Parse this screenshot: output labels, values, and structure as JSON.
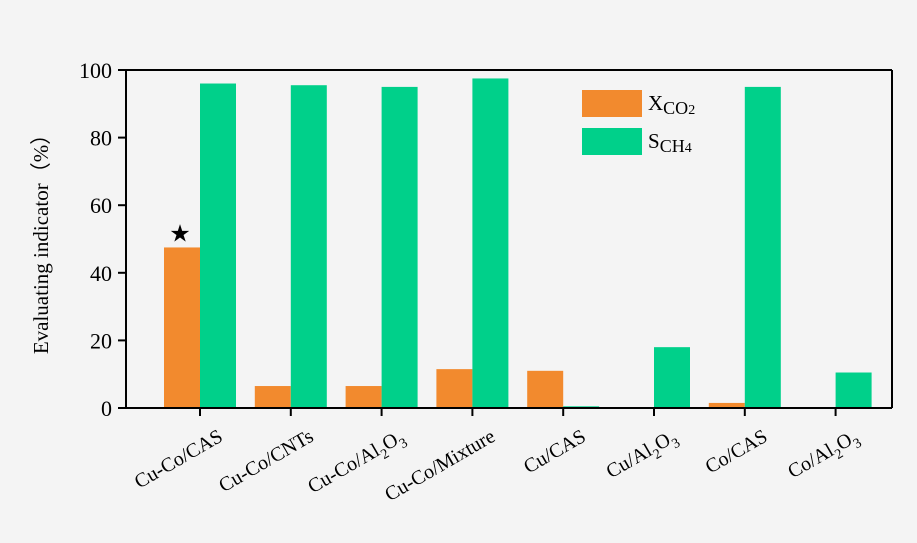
{
  "chart_data": {
    "type": "bar",
    "ylabel": "Evaluating indicator（%）",
    "ylim": [
      0,
      100
    ],
    "yticks": [
      0,
      20,
      40,
      60,
      80,
      100
    ],
    "categories": [
      {
        "base": "Cu-Co/CAS"
      },
      {
        "base": "Cu-Co/CNTs"
      },
      {
        "base": "Cu-Co/Al",
        "sub1": "2",
        "mid": "O",
        "sub2": "3"
      },
      {
        "base": "Cu-Co/Mixture"
      },
      {
        "base": "Cu/CAS"
      },
      {
        "base": "Cu/Al",
        "sub1": "2",
        "mid": "O",
        "sub2": "3"
      },
      {
        "base": "Co/CAS"
      },
      {
        "base": "Co/Al",
        "sub1": "2",
        "mid": "O",
        "sub2": "3"
      }
    ],
    "series": [
      {
        "name": "X",
        "name_sub": "CO2",
        "values": [
          47.5,
          6.5,
          6.5,
          11.5,
          11,
          0,
          1.5,
          0
        ]
      },
      {
        "name": "S",
        "name_sub": "CH4",
        "values": [
          96,
          95.5,
          95,
          97.5,
          0.5,
          18,
          95,
          10.5
        ]
      }
    ],
    "colors": {
      "X": "#f28a2e",
      "S": "#00d08a"
    },
    "annotation": {
      "symbol": "★",
      "category_index": 0,
      "series_index": 0
    },
    "legend": "top-right",
    "grid": false
  }
}
